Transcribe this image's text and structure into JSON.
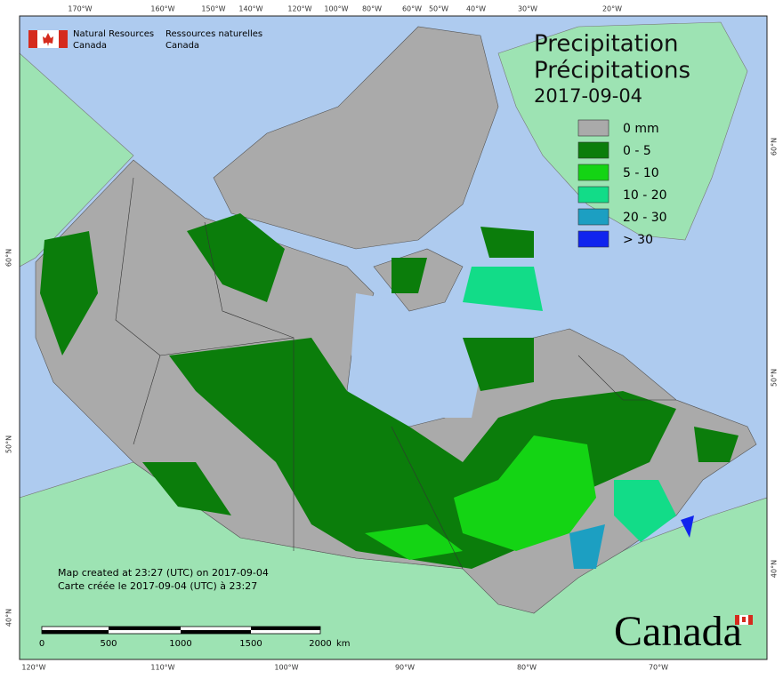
{
  "header": {
    "org_en": [
      "Natural Resources",
      "Canada"
    ],
    "org_fr": [
      "Ressources naturelles",
      "Canada"
    ]
  },
  "title": {
    "en": "Precipitation",
    "fr": "Précipitations",
    "date": "2017-09-04"
  },
  "legend": [
    {
      "label": "0 mm",
      "color": "#aaaaaa"
    },
    {
      "label": "0 - 5",
      "color": "#0b7d0b"
    },
    {
      "label": "5 - 10",
      "color": "#14d414"
    },
    {
      "label": "10 - 20",
      "color": "#12dc88"
    },
    {
      "label": "20 - 30",
      "color": "#1c9fc2"
    },
    {
      "label": "> 30",
      "color": "#1024ee"
    }
  ],
  "graticule": {
    "top": [
      "170°W",
      "160°W",
      "150°W",
      "140°W",
      "120°W",
      "100°W",
      "80°W",
      "60°W",
      "50°W",
      "40°W",
      "30°W",
      "20°W"
    ],
    "bottom": [
      "120°W",
      "110°W",
      "100°W",
      "90°W",
      "80°W",
      "70°W"
    ],
    "left": [
      "60°N",
      "50°N",
      "40°N"
    ],
    "right": [
      "60°N",
      "50°N",
      "40°N"
    ]
  },
  "footer": {
    "created_en": "Map created at 23:27 (UTC) on 2017-09-04",
    "created_fr": "Carte créée le 2017-09-04 (UTC) à 23:27"
  },
  "scale_bar": {
    "labels": [
      "0",
      "500",
      "1000",
      "1500",
      "2000"
    ],
    "unit": "km"
  },
  "wordmark": "Canada"
}
